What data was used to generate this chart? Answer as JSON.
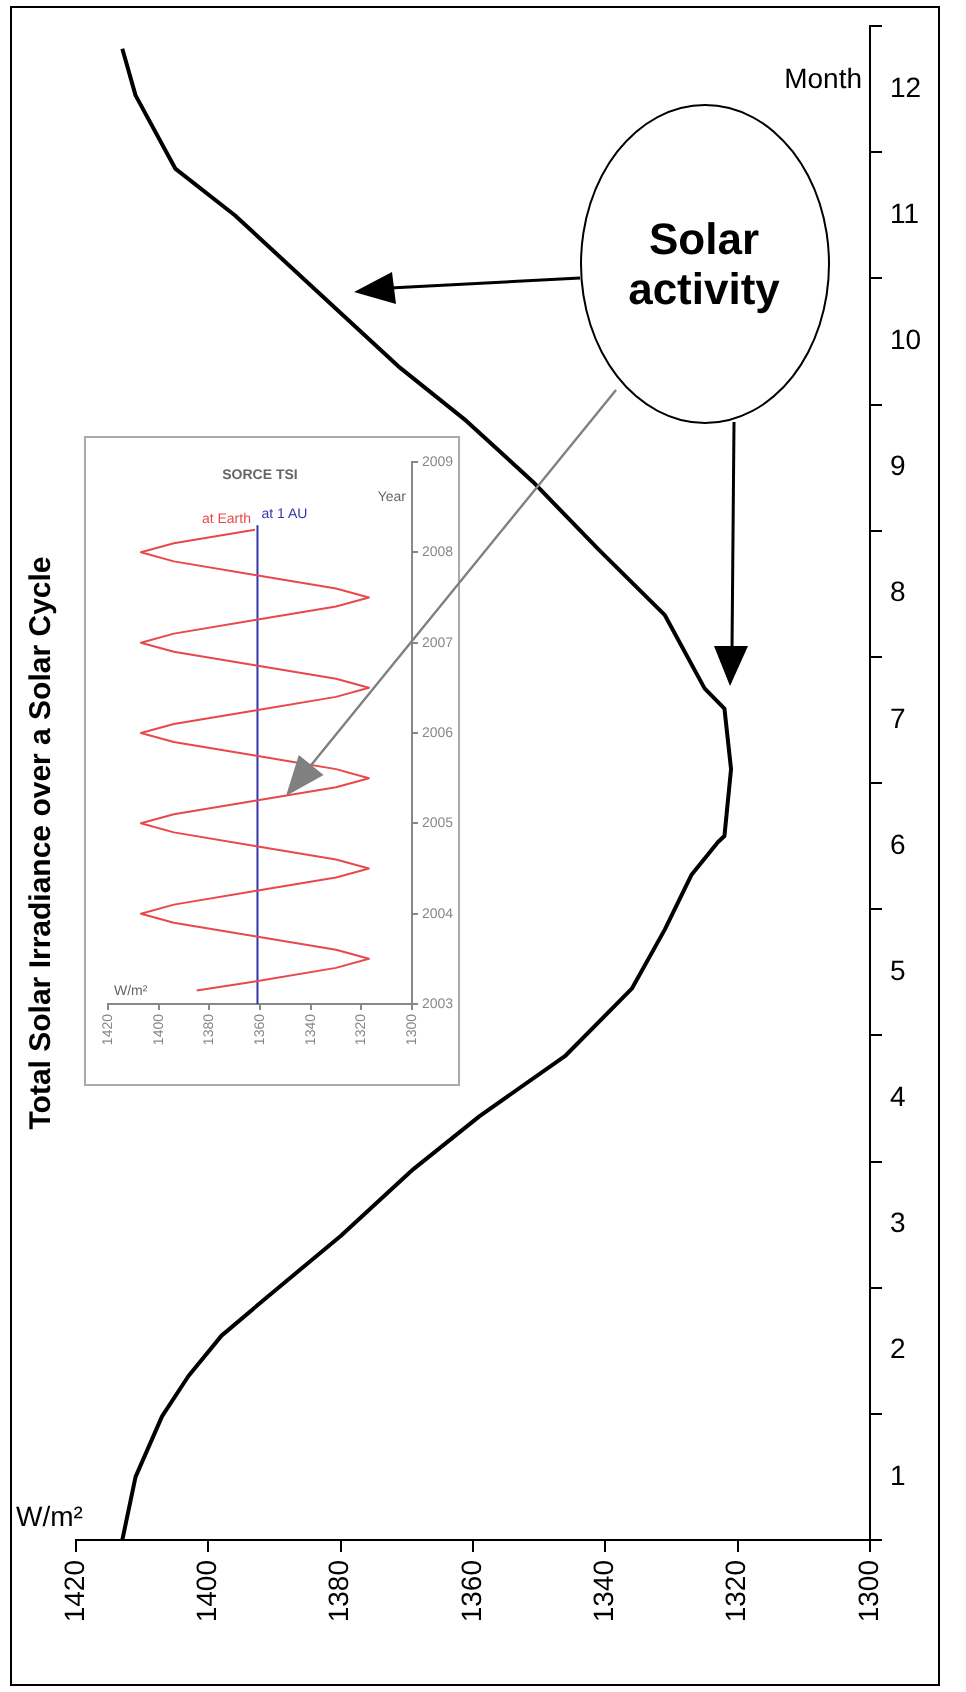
{
  "chart_data": [
    {
      "type": "line",
      "title": "Total Solar Irradiance over a Solar Cycle",
      "xlabel": "W/m²",
      "ylabel": "Month",
      "annotations": [
        "Solar activity"
      ],
      "x": [
        1413,
        1411,
        1407,
        1403,
        1398,
        1391,
        1380,
        1369,
        1359,
        1346,
        1336,
        1331,
        1327,
        1323,
        1322,
        1321,
        1322,
        1325,
        1331,
        1341,
        1351,
        1361,
        1371,
        1383,
        1396,
        1405,
        1411,
        1413
      ],
      "values": [
        0.5,
        1.0,
        1.48,
        1.8,
        2.12,
        2.43,
        2.91,
        3.44,
        3.86,
        4.34,
        4.87,
        5.34,
        5.77,
        6.03,
        6.08,
        6.61,
        7.09,
        7.25,
        7.83,
        8.35,
        8.89,
        9.37,
        9.79,
        10.37,
        11.0,
        11.37,
        11.95,
        12.32
      ],
      "color": "#000000",
      "grid": false,
      "xlim": [
        1420,
        1300
      ],
      "xticks": [
        1300,
        1320,
        1340,
        1360,
        1380,
        1400,
        1420
      ],
      "ylim": [
        0.5,
        12.5
      ],
      "yticks": [
        {
          "value": 0.5,
          "label": null
        },
        1,
        {
          "value": 1.5,
          "label": null
        },
        2,
        {
          "value": 2.5,
          "label": null
        },
        3,
        {
          "value": 3.5,
          "label": null
        },
        4,
        {
          "value": 4.5,
          "label": null
        },
        5,
        {
          "value": 5.5,
          "label": null
        },
        6,
        {
          "value": 6.5,
          "label": null
        },
        7,
        {
          "value": 7.5,
          "label": null
        },
        8,
        {
          "value": 8.5,
          "label": null
        },
        9,
        {
          "value": 9.5,
          "label": null
        },
        10,
        {
          "value": 10.5,
          "label": null
        },
        11,
        {
          "value": 11.5,
          "label": null
        },
        12,
        {
          "value": 12.5,
          "label": null
        }
      ]
    },
    {
      "type": "line",
      "title": "SORCE TSI",
      "xlabel": "W/m²",
      "ylabel": "Year",
      "grid": false,
      "series": [
        {
          "name": "at Earth",
          "color": "#e8484a",
          "x": [
            1385,
            1362,
            1330,
            1317,
            1330,
            1362,
            1394,
            1407,
            1394,
            1362,
            1330,
            1317,
            1330,
            1362,
            1394,
            1407,
            1394,
            1362,
            1330,
            1317,
            1330,
            1362,
            1394,
            1407,
            1394,
            1362,
            1330,
            1317,
            1330,
            1362,
            1394,
            1407,
            1394,
            1362,
            1330,
            1317,
            1330,
            1362,
            1394,
            1407,
            1394,
            1362
          ],
          "values": [
            2003.15,
            2003.25,
            2003.4,
            2003.5,
            2003.6,
            2003.75,
            2003.9,
            2004,
            2004.1,
            2004.25,
            2004.4,
            2004.5,
            2004.6,
            2004.75,
            2004.9,
            2005,
            2005.1,
            2005.25,
            2005.4,
            2005.5,
            2005.6,
            2005.75,
            2005.9,
            2006,
            2006.1,
            2006.25,
            2006.4,
            2006.5,
            2006.6,
            2006.75,
            2006.9,
            2007,
            2007.1,
            2007.25,
            2007.4,
            2007.5,
            2007.6,
            2007.75,
            2007.9,
            2008,
            2008.1,
            2008.25
          ]
        },
        {
          "name": "at 1 AU",
          "color": "#3333aa",
          "x": [
            1361,
            1361
          ],
          "values": [
            2003,
            2008.3
          ]
        }
      ],
      "xlim": [
        1420,
        1300
      ],
      "xticks": [
        1300,
        1320,
        1340,
        1360,
        1380,
        1400,
        1420
      ],
      "ylim": [
        2003,
        2009
      ],
      "yticks": [
        2003,
        2004,
        2005,
        2006,
        2007,
        2008,
        2009
      ]
    }
  ]
}
